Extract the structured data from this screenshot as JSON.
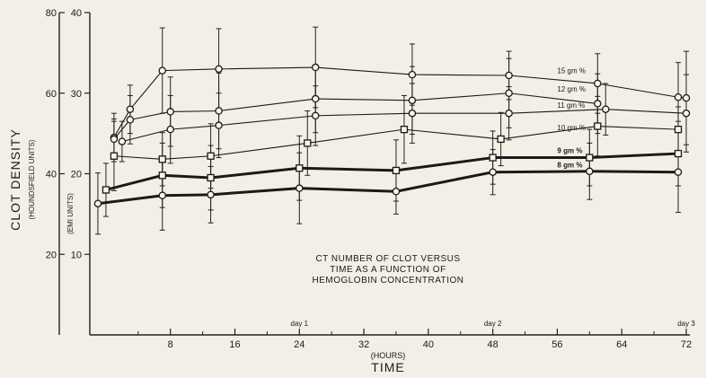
{
  "chart_data": {
    "type": "line",
    "caption": [
      "CT NUMBER OF CLOT VERSUS",
      "TIME AS A FUNCTION OF",
      "HEMOGLOBIN CONCENTRATION"
    ],
    "xlabel": "TIME",
    "xunit": "(HOURS)",
    "xlim": [
      -2,
      72
    ],
    "xticks": [
      8,
      16,
      24,
      32,
      40,
      48,
      56,
      64,
      72
    ],
    "day_labels": [
      {
        "x": 24,
        "label": "day 1"
      },
      {
        "x": 48,
        "label": "day 2"
      },
      {
        "x": 72,
        "label": "day 3"
      }
    ],
    "y_outer": {
      "label": "CLOT DENSITY",
      "unit": "(HOUNDSFIELD UNITS)",
      "ticks": [
        20,
        40,
        60,
        80
      ],
      "lim": [
        0,
        80
      ]
    },
    "y_inner": {
      "unit": "(EMI UNITS)",
      "ticks": [
        10,
        20,
        30,
        40
      ],
      "lim": [
        0,
        40
      ]
    },
    "series": [
      {
        "name": "15 gm %",
        "marker": "circle",
        "heavy": false,
        "x": [
          1,
          3,
          7,
          14,
          26,
          38,
          50,
          61,
          71,
          72
        ],
        "y": [
          24.5,
          28.0,
          32.8,
          33.0,
          33.2,
          32.3,
          32.2,
          31.2,
          29.5,
          29.4
        ],
        "err": [
          3.0,
          3.0,
          5.3,
          5.0,
          5.0,
          3.8,
          3.0,
          3.7,
          4.3,
          5.8
        ]
      },
      {
        "name": "12 gm %",
        "marker": "circle",
        "heavy": false,
        "x": [
          1,
          3,
          8,
          14,
          26,
          38,
          50,
          61
        ],
        "y": [
          24.3,
          26.7,
          27.7,
          27.8,
          29.3,
          29.1,
          30.0,
          28.7
        ],
        "err": [
          2.5,
          3.0,
          4.3,
          4.7,
          4.2,
          4.2,
          4.3,
          3.7
        ]
      },
      {
        "name": "11 gm %",
        "marker": "circle",
        "heavy": false,
        "x": [
          2,
          8,
          14,
          26,
          38,
          50,
          62,
          72
        ],
        "y": [
          24.0,
          25.5,
          26.0,
          27.2,
          27.5,
          27.5,
          28.0,
          27.5
        ],
        "err": [
          2.5,
          4.2,
          4.0,
          3.7,
          3.7,
          3.3,
          3.2,
          4.8
        ]
      },
      {
        "name": "10 gm %",
        "marker": "square",
        "heavy": false,
        "x": [
          1,
          7,
          13,
          25,
          37,
          49,
          61,
          71
        ],
        "y": [
          22.2,
          21.8,
          22.2,
          23.8,
          25.5,
          24.3,
          25.9,
          25.5
        ],
        "err": [
          4.3,
          3.3,
          4.0,
          4.0,
          4.2,
          3.3,
          3.7,
          2.8
        ]
      },
      {
        "name": "9 gm %",
        "marker": "square",
        "heavy": true,
        "x": [
          0,
          7,
          13,
          24,
          36,
          48,
          60,
          71
        ],
        "y": [
          18.0,
          19.8,
          19.5,
          20.7,
          20.4,
          22.0,
          22.0,
          22.5
        ],
        "err": [
          3.3,
          4.0,
          4.0,
          4.0,
          3.8,
          3.3,
          3.5,
          4.0
        ]
      },
      {
        "name": "8 gm %",
        "marker": "circle",
        "heavy": true,
        "x": [
          -1,
          7,
          13,
          24,
          36,
          48,
          60,
          71
        ],
        "y": [
          16.3,
          17.3,
          17.4,
          18.2,
          17.8,
          20.2,
          20.3,
          20.2
        ],
        "err": [
          3.8,
          4.3,
          3.5,
          4.4,
          2.8,
          2.8,
          3.5,
          5.0
        ]
      }
    ]
  }
}
